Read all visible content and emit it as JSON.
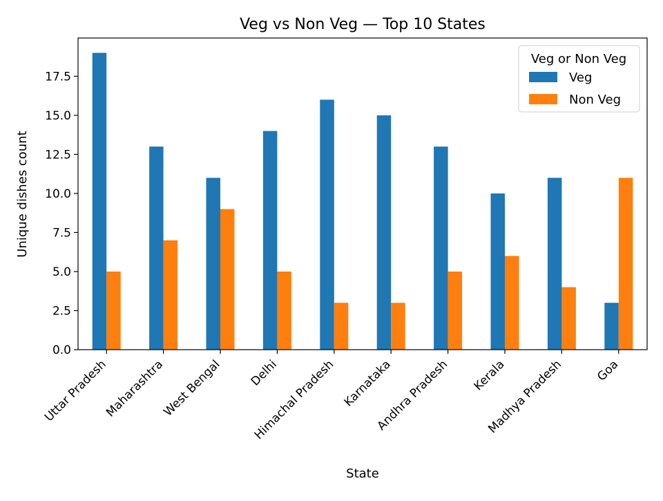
{
  "chart_data": {
    "type": "bar",
    "title": "Veg vs Non Veg — Top 10 States",
    "xlabel": "State",
    "ylabel": "Unique dishes count",
    "categories": [
      "Uttar Pradesh",
      "Maharashtra",
      "West Bengal",
      "Delhi",
      "Himachal Pradesh",
      "Karnataka",
      "Andhra Pradesh",
      "Kerala",
      "Madhya Pradesh",
      "Goa"
    ],
    "series": [
      {
        "name": "Veg",
        "color": "#1f77b4",
        "values": [
          19,
          13,
          11,
          14,
          16,
          15,
          13,
          10,
          11,
          3
        ]
      },
      {
        "name": "Non Veg",
        "color": "#ff7f0e",
        "values": [
          5,
          7,
          9,
          5,
          3,
          3,
          5,
          6,
          4,
          11
        ]
      }
    ],
    "ylim": [
      0,
      19.95
    ],
    "yticks": [
      "0.0",
      "2.5",
      "5.0",
      "7.5",
      "10.0",
      "12.5",
      "15.0",
      "17.5"
    ],
    "legend": {
      "title": "Veg or Non Veg",
      "placement": "upper-right"
    },
    "grid": false
  }
}
